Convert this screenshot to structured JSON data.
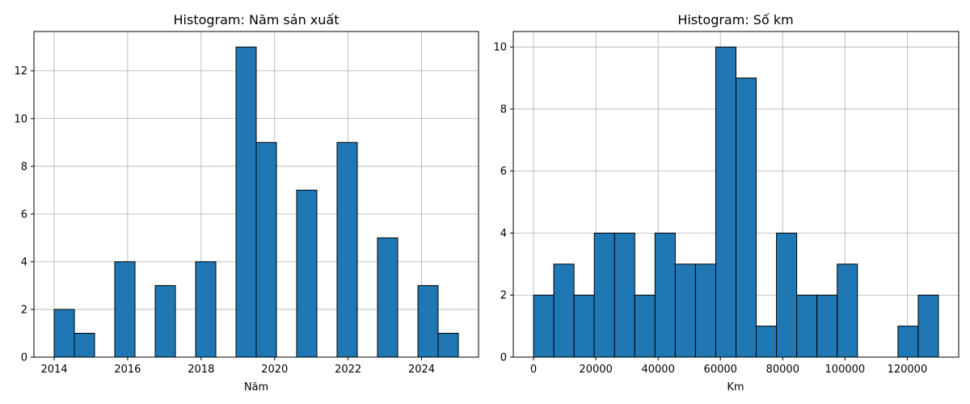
{
  "chart_data": [
    {
      "type": "bar",
      "title": "Histogram: Năm sản xuất",
      "xlabel": "Năm",
      "ylabel": "",
      "xlim": [
        2013.45,
        2025.55
      ],
      "ylim": [
        0,
        13.65
      ],
      "xticks": [
        2014,
        2016,
        2018,
        2020,
        2022,
        2024
      ],
      "yticks": [
        0,
        2,
        4,
        6,
        8,
        10,
        12
      ],
      "grid": true,
      "bar_color": "#1f77b4",
      "edge_color": "#000000",
      "bins": [
        {
          "x0": 2014.0,
          "x1": 2014.55,
          "value": 2
        },
        {
          "x0": 2014.55,
          "x1": 2015.1,
          "value": 1
        },
        {
          "x0": 2015.1,
          "x1": 2015.65,
          "value": 0
        },
        {
          "x0": 2015.65,
          "x1": 2016.2,
          "value": 4
        },
        {
          "x0": 2016.2,
          "x1": 2016.75,
          "value": 0
        },
        {
          "x0": 2016.75,
          "x1": 2017.3,
          "value": 3
        },
        {
          "x0": 2017.3,
          "x1": 2017.85,
          "value": 0
        },
        {
          "x0": 2017.85,
          "x1": 2018.4,
          "value": 4
        },
        {
          "x0": 2018.4,
          "x1": 2018.95,
          "value": 0
        },
        {
          "x0": 2018.95,
          "x1": 2019.5,
          "value": 13
        },
        {
          "x0": 2019.5,
          "x1": 2020.05,
          "value": 9
        },
        {
          "x0": 2020.05,
          "x1": 2020.6,
          "value": 0
        },
        {
          "x0": 2020.6,
          "x1": 2021.15,
          "value": 7
        },
        {
          "x0": 2021.15,
          "x1": 2021.7,
          "value": 0
        },
        {
          "x0": 2021.7,
          "x1": 2022.25,
          "value": 9
        },
        {
          "x0": 2022.25,
          "x1": 2022.8,
          "value": 0
        },
        {
          "x0": 2022.8,
          "x1": 2023.35,
          "value": 5
        },
        {
          "x0": 2023.35,
          "x1": 2023.9,
          "value": 0
        },
        {
          "x0": 2023.9,
          "x1": 2024.45,
          "value": 3
        },
        {
          "x0": 2024.45,
          "x1": 2025.0,
          "value": 1
        }
      ]
    },
    {
      "type": "bar",
      "title": "Histogram: Số km",
      "xlabel": "Km",
      "ylabel": "",
      "xlim": [
        -6500,
        136500
      ],
      "ylim": [
        0,
        10.5
      ],
      "xticks": [
        0,
        20000,
        40000,
        60000,
        80000,
        100000,
        120000
      ],
      "yticks": [
        0,
        2,
        4,
        6,
        8,
        10
      ],
      "grid": true,
      "bar_color": "#1f77b4",
      "edge_color": "#000000",
      "bins": [
        {
          "x0": 0,
          "x1": 6500,
          "value": 2
        },
        {
          "x0": 6500,
          "x1": 13000,
          "value": 3
        },
        {
          "x0": 13000,
          "x1": 19500,
          "value": 2
        },
        {
          "x0": 19500,
          "x1": 26000,
          "value": 4
        },
        {
          "x0": 26000,
          "x1": 32500,
          "value": 4
        },
        {
          "x0": 32500,
          "x1": 39000,
          "value": 2
        },
        {
          "x0": 39000,
          "x1": 45500,
          "value": 4
        },
        {
          "x0": 45500,
          "x1": 52000,
          "value": 3
        },
        {
          "x0": 52000,
          "x1": 58500,
          "value": 3
        },
        {
          "x0": 58500,
          "x1": 65000,
          "value": 10
        },
        {
          "x0": 65000,
          "x1": 71500,
          "value": 9
        },
        {
          "x0": 71500,
          "x1": 78000,
          "value": 1
        },
        {
          "x0": 78000,
          "x1": 84500,
          "value": 4
        },
        {
          "x0": 84500,
          "x1": 91000,
          "value": 2
        },
        {
          "x0": 91000,
          "x1": 97500,
          "value": 2
        },
        {
          "x0": 97500,
          "x1": 104000,
          "value": 3
        },
        {
          "x0": 104000,
          "x1": 110500,
          "value": 0
        },
        {
          "x0": 110500,
          "x1": 117000,
          "value": 0
        },
        {
          "x0": 117000,
          "x1": 123500,
          "value": 1
        },
        {
          "x0": 123500,
          "x1": 130000,
          "value": 2
        }
      ]
    }
  ]
}
